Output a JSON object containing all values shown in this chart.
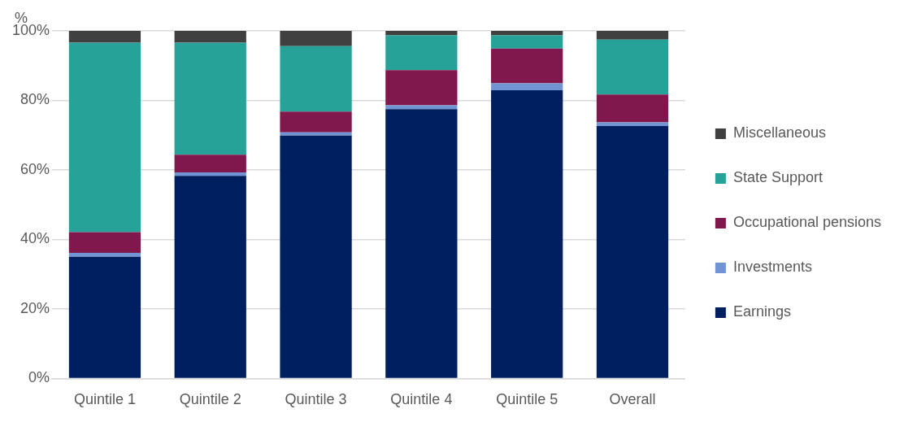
{
  "chart_data": {
    "type": "bar",
    "stacked": true,
    "ylabel": "%",
    "categories": [
      "Quintile 1",
      "Quintile 2",
      "Quintile 3",
      "Quintile 4",
      "Quintile 5",
      "Overall"
    ],
    "series": [
      {
        "name": "Earnings",
        "color": "#001f5f",
        "values": [
          35,
          58.3,
          69.9,
          77.5,
          82.9,
          72.6
        ]
      },
      {
        "name": "Investments",
        "color": "#7094d4",
        "values": [
          1.1,
          1,
          0.9,
          1.1,
          2,
          1.1
        ]
      },
      {
        "name": "Occupational pensions",
        "color": "#80174d",
        "values": [
          6,
          5.1,
          6,
          10.1,
          10,
          8
        ]
      },
      {
        "name": "State Support",
        "color": "#27a298",
        "values": [
          54.5,
          32.2,
          18.8,
          10,
          3.8,
          15.8
        ]
      },
      {
        "name": "Miscellaneous",
        "color": "#404040",
        "values": [
          3.4,
          3.4,
          4.4,
          1.3,
          1.3,
          2.5
        ]
      }
    ],
    "ylim": [
      0,
      100
    ],
    "yticks": [
      {
        "value": 0,
        "label": "0%"
      },
      {
        "value": 20,
        "label": "20%"
      },
      {
        "value": 40,
        "label": "40%"
      },
      {
        "value": 60,
        "label": "60%"
      },
      {
        "value": 80,
        "label": "80%"
      },
      {
        "value": 100,
        "label": "100%"
      }
    ],
    "grid": "y",
    "legend": "right"
  }
}
